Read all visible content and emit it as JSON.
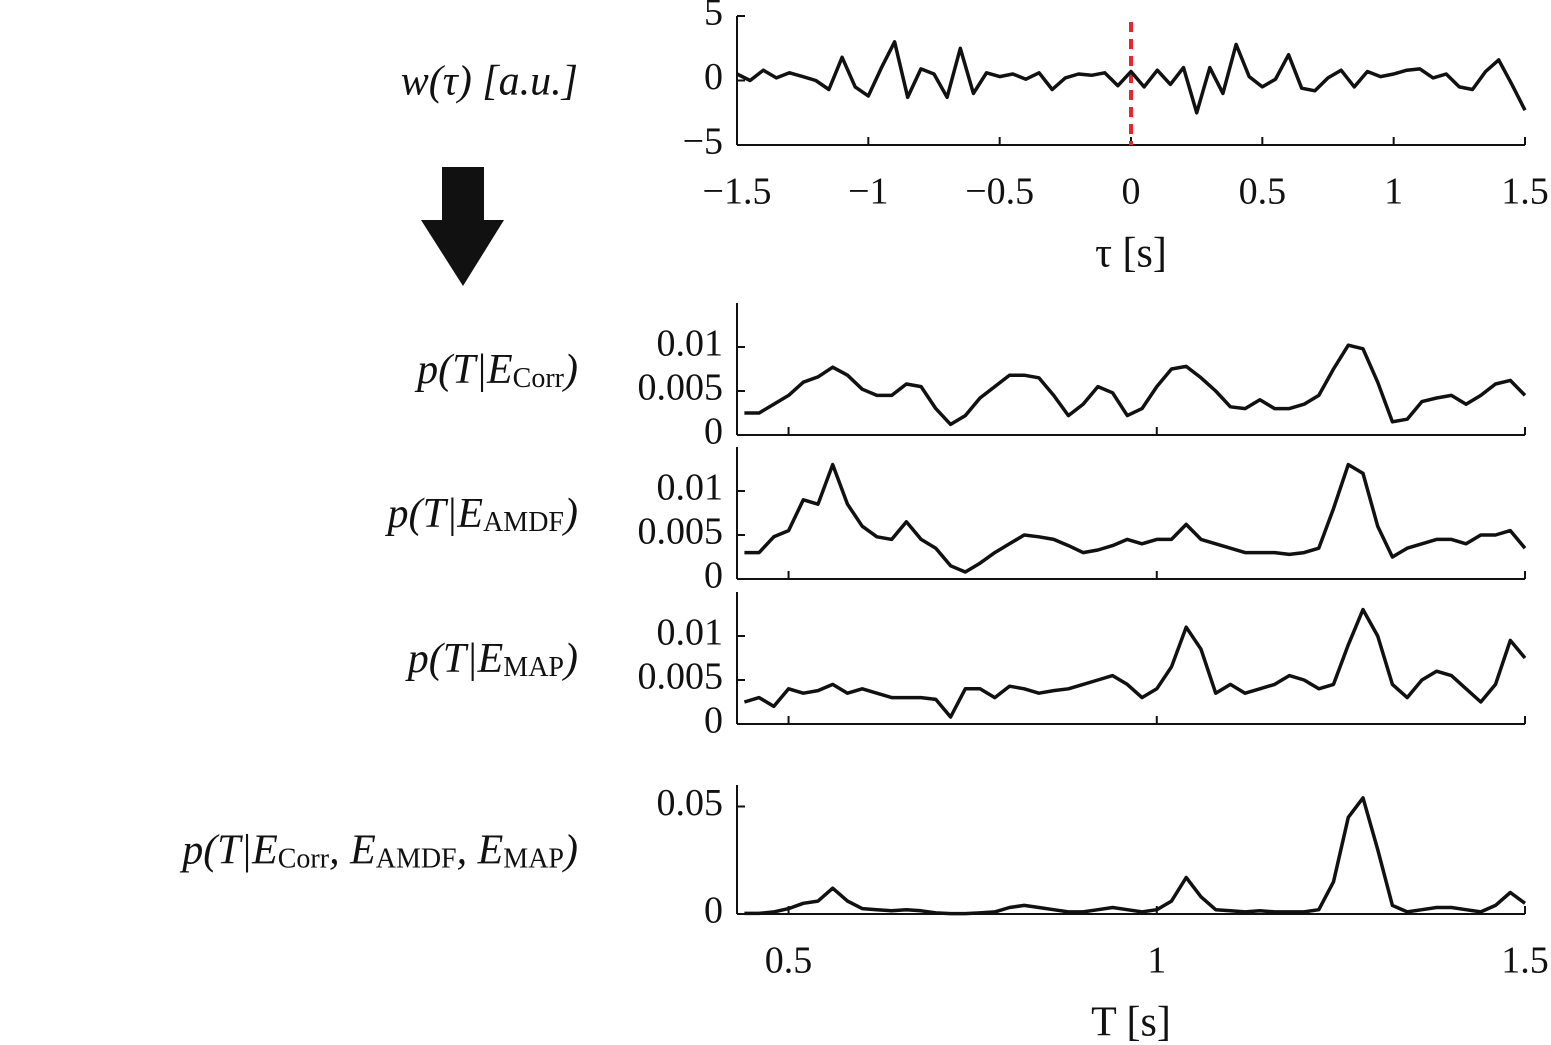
{
  "chart_data": [
    {
      "type": "line",
      "ylabel": [
        "w(τ) [a.u.]"
      ],
      "xlabel": "τ [s]",
      "color": "#111",
      "x": [
        -1.5,
        -1.45,
        -1.4,
        -1.35,
        -1.3,
        -1.25,
        -1.2,
        -1.15,
        -1.1,
        -1.05,
        -1.0,
        -0.95,
        -0.9,
        -0.85,
        -0.8,
        -0.75,
        -0.7,
        -0.65,
        -0.6,
        -0.55,
        -0.5,
        -0.45,
        -0.4,
        -0.35,
        -0.3,
        -0.25,
        -0.2,
        -0.15,
        -0.1,
        -0.05,
        0,
        0.05,
        0.1,
        0.15,
        0.2,
        0.25,
        0.3,
        0.35,
        0.4,
        0.45,
        0.5,
        0.55,
        0.6,
        0.65,
        0.7,
        0.75,
        0.8,
        0.85,
        0.9,
        0.95,
        1.0,
        1.05,
        1.1,
        1.15,
        1.2,
        1.25,
        1.3,
        1.35,
        1.4,
        1.45,
        1.5
      ],
      "values": [
        0.5,
        0,
        0.8,
        0.2,
        0.6,
        0.3,
        0,
        -0.7,
        1.8,
        -0.5,
        -1.2,
        1.0,
        3.0,
        -1.3,
        0.9,
        0.5,
        -1.3,
        2.5,
        -1.0,
        0.6,
        0.3,
        0.5,
        0.1,
        0.6,
        -0.7,
        0.2,
        0.5,
        0.4,
        0.6,
        -0.4,
        0.7,
        -0.5,
        0.8,
        -0.3,
        1.0,
        -2.5,
        1.0,
        -1.0,
        2.8,
        0.3,
        -0.5,
        0.1,
        2.0,
        -0.6,
        -0.8,
        0.2,
        0.8,
        -0.5,
        0.7,
        0.3,
        0.5,
        0.8,
        0.9,
        0.2,
        0.5,
        -0.5,
        -0.7,
        0.7,
        1.6,
        -0.3,
        -2.3
      ],
      "xlim": [
        -1.5,
        1.5
      ],
      "ylim": [
        -5,
        5
      ],
      "xticks": [
        {
          "value": -1.5,
          "label": "−1.5"
        },
        {
          "value": -1,
          "label": "−1"
        },
        {
          "value": -0.5,
          "label": "−0.5"
        },
        0,
        0.5,
        1,
        1.5
      ],
      "yticks": [
        {
          "value": -5,
          "label": "−5"
        },
        0,
        5
      ],
      "vline": {
        "x": 0,
        "color": "#e8262b"
      }
    },
    {
      "type": "line",
      "ylabel": [
        "p(T|E",
        "Corr",
        ")"
      ],
      "color": "#111",
      "xtick_labels": false,
      "x": [
        0.44,
        0.46,
        0.48,
        0.5,
        0.52,
        0.54,
        0.56,
        0.58,
        0.6,
        0.62,
        0.64,
        0.66,
        0.68,
        0.7,
        0.72,
        0.74,
        0.76,
        0.78,
        0.8,
        0.82,
        0.84,
        0.86,
        0.88,
        0.9,
        0.92,
        0.94,
        0.96,
        0.98,
        1.0,
        1.02,
        1.04,
        1.06,
        1.08,
        1.1,
        1.12,
        1.14,
        1.16,
        1.18,
        1.2,
        1.22,
        1.24,
        1.26,
        1.28,
        1.3,
        1.32,
        1.34,
        1.36,
        1.38,
        1.4,
        1.42,
        1.44,
        1.46,
        1.48,
        1.5
      ],
      "values": [
        0.0025,
        0.0025,
        0.0035,
        0.0045,
        0.006,
        0.0066,
        0.0077,
        0.0068,
        0.0052,
        0.0045,
        0.0045,
        0.0058,
        0.0055,
        0.003,
        0.0012,
        0.0022,
        0.0042,
        0.0055,
        0.0068,
        0.0068,
        0.0065,
        0.0045,
        0.0022,
        0.0035,
        0.0055,
        0.0048,
        0.0022,
        0.003,
        0.0055,
        0.0075,
        0.0078,
        0.0065,
        0.005,
        0.0032,
        0.003,
        0.004,
        0.003,
        0.003,
        0.0035,
        0.0045,
        0.0075,
        0.0102,
        0.0098,
        0.006,
        0.0015,
        0.0018,
        0.0038,
        0.0042,
        0.0045,
        0.0035,
        0.0045,
        0.0058,
        0.0062,
        0.0045
      ],
      "xlim": [
        0.43,
        1.5
      ],
      "ylim": [
        0,
        0.015
      ],
      "xticks": [
        0.5,
        1,
        1.5
      ],
      "yticks": [
        0,
        0.005,
        0.01
      ]
    },
    {
      "type": "line",
      "ylabel": [
        "p(T|E",
        "AMDF",
        ")"
      ],
      "color": "#111",
      "xtick_labels": false,
      "x": [
        0.44,
        0.46,
        0.48,
        0.5,
        0.52,
        0.54,
        0.56,
        0.58,
        0.6,
        0.62,
        0.64,
        0.66,
        0.68,
        0.7,
        0.72,
        0.74,
        0.76,
        0.78,
        0.8,
        0.82,
        0.84,
        0.86,
        0.88,
        0.9,
        0.92,
        0.94,
        0.96,
        0.98,
        1.0,
        1.02,
        1.04,
        1.06,
        1.08,
        1.1,
        1.12,
        1.14,
        1.16,
        1.18,
        1.2,
        1.22,
        1.24,
        1.26,
        1.28,
        1.3,
        1.32,
        1.34,
        1.36,
        1.38,
        1.4,
        1.42,
        1.44,
        1.46,
        1.48,
        1.5
      ],
      "values": [
        0.003,
        0.003,
        0.0048,
        0.0055,
        0.009,
        0.0085,
        0.013,
        0.0085,
        0.006,
        0.0048,
        0.0045,
        0.0065,
        0.0045,
        0.0035,
        0.0015,
        0.0008,
        0.0018,
        0.003,
        0.004,
        0.005,
        0.0048,
        0.0045,
        0.0038,
        0.003,
        0.0033,
        0.0038,
        0.0045,
        0.004,
        0.0045,
        0.0045,
        0.0062,
        0.0045,
        0.004,
        0.0035,
        0.003,
        0.003,
        0.003,
        0.0028,
        0.003,
        0.0035,
        0.008,
        0.013,
        0.012,
        0.006,
        0.0025,
        0.0035,
        0.004,
        0.0045,
        0.0045,
        0.004,
        0.005,
        0.005,
        0.0055,
        0.0035
      ],
      "xlim": [
        0.43,
        1.5
      ],
      "ylim": [
        0,
        0.015
      ],
      "xticks": [
        0.5,
        1,
        1.5
      ],
      "yticks": [
        0,
        0.005,
        0.01
      ]
    },
    {
      "type": "line",
      "ylabel": [
        "p(T|E",
        "MAP",
        ")"
      ],
      "color": "#111",
      "xtick_labels": false,
      "x": [
        0.44,
        0.46,
        0.48,
        0.5,
        0.52,
        0.54,
        0.56,
        0.58,
        0.6,
        0.62,
        0.64,
        0.66,
        0.68,
        0.7,
        0.72,
        0.74,
        0.76,
        0.78,
        0.8,
        0.82,
        0.84,
        0.86,
        0.88,
        0.9,
        0.92,
        0.94,
        0.96,
        0.98,
        1.0,
        1.02,
        1.04,
        1.06,
        1.08,
        1.1,
        1.12,
        1.14,
        1.16,
        1.18,
        1.2,
        1.22,
        1.24,
        1.26,
        1.28,
        1.3,
        1.32,
        1.34,
        1.36,
        1.38,
        1.4,
        1.42,
        1.44,
        1.46,
        1.48,
        1.5
      ],
      "values": [
        0.0025,
        0.003,
        0.002,
        0.004,
        0.0035,
        0.0038,
        0.0045,
        0.0035,
        0.004,
        0.0035,
        0.003,
        0.003,
        0.003,
        0.0028,
        0.0008,
        0.004,
        0.004,
        0.003,
        0.0043,
        0.004,
        0.0035,
        0.0038,
        0.004,
        0.0045,
        0.005,
        0.0055,
        0.0045,
        0.003,
        0.004,
        0.0065,
        0.011,
        0.0085,
        0.0035,
        0.0045,
        0.0035,
        0.004,
        0.0045,
        0.0055,
        0.005,
        0.004,
        0.0045,
        0.009,
        0.013,
        0.01,
        0.0045,
        0.003,
        0.005,
        0.006,
        0.0055,
        0.004,
        0.0025,
        0.0045,
        0.0095,
        0.0075
      ],
      "xlim": [
        0.43,
        1.5
      ],
      "ylim": [
        0,
        0.015
      ],
      "xticks": [
        0.5,
        1,
        1.5
      ],
      "yticks": [
        0,
        0.005,
        0.01
      ]
    },
    {
      "type": "line",
      "ylabel": [
        "p(T|E",
        "Corr",
        ", E",
        "AMDF",
        ", E",
        "MAP",
        ")"
      ],
      "xlabel": "T [s]",
      "color": "#111",
      "x": [
        0.44,
        0.46,
        0.48,
        0.5,
        0.52,
        0.54,
        0.56,
        0.58,
        0.6,
        0.62,
        0.64,
        0.66,
        0.68,
        0.7,
        0.72,
        0.74,
        0.76,
        0.78,
        0.8,
        0.82,
        0.84,
        0.86,
        0.88,
        0.9,
        0.92,
        0.94,
        0.96,
        0.98,
        1.0,
        1.02,
        1.04,
        1.06,
        1.08,
        1.1,
        1.12,
        1.14,
        1.16,
        1.18,
        1.2,
        1.22,
        1.24,
        1.26,
        1.28,
        1.3,
        1.32,
        1.34,
        1.36,
        1.38,
        1.4,
        1.42,
        1.44,
        1.46,
        1.48,
        1.5
      ],
      "values": [
        0.0003,
        0.0003,
        0.001,
        0.0025,
        0.005,
        0.006,
        0.012,
        0.006,
        0.0025,
        0.002,
        0.0015,
        0.002,
        0.0015,
        0.0005,
        0.0002,
        0.0002,
        0.0005,
        0.001,
        0.003,
        0.004,
        0.003,
        0.002,
        0.001,
        0.001,
        0.002,
        0.003,
        0.002,
        0.001,
        0.002,
        0.006,
        0.017,
        0.008,
        0.002,
        0.0015,
        0.001,
        0.0015,
        0.001,
        0.001,
        0.001,
        0.002,
        0.015,
        0.045,
        0.054,
        0.03,
        0.004,
        0.001,
        0.002,
        0.003,
        0.003,
        0.002,
        0.001,
        0.004,
        0.01,
        0.005
      ],
      "xlim": [
        0.43,
        1.5
      ],
      "ylim": [
        0,
        0.06
      ],
      "xticks": [
        0.5,
        1,
        1.5
      ],
      "yticks": [
        0,
        0.05
      ]
    }
  ]
}
